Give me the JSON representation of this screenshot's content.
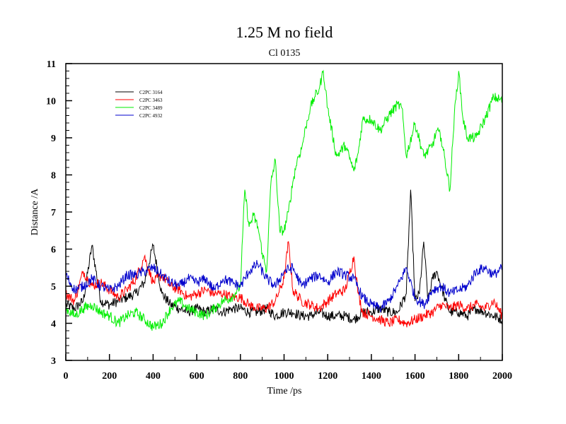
{
  "chart_data": {
    "type": "line",
    "title": "1.25 M no field",
    "subtitle": "Cl 0135",
    "xlabel": "Time /ps",
    "ylabel": "Distance /A",
    "xlim": [
      0,
      2000
    ],
    "ylim": [
      3,
      11
    ],
    "xticks": [
      0,
      200,
      400,
      600,
      800,
      1000,
      1200,
      1400,
      1600,
      1800,
      2000
    ],
    "yticks": [
      3,
      4,
      5,
      6,
      7,
      8,
      9,
      10,
      11
    ],
    "legend_position": "top-left",
    "series": [
      {
        "name": "C2PC 3164",
        "color": "#000000",
        "x": [
          0,
          40,
          80,
          120,
          160,
          200,
          240,
          280,
          320,
          360,
          400,
          440,
          480,
          520,
          560,
          600,
          640,
          680,
          720,
          760,
          800,
          840,
          880,
          920,
          960,
          1000,
          1040,
          1080,
          1120,
          1160,
          1200,
          1240,
          1280,
          1320,
          1360,
          1400,
          1440,
          1480,
          1520,
          1560,
          1580,
          1600,
          1620,
          1640,
          1660,
          1680,
          1700,
          1720,
          1740,
          1760,
          1800,
          1840,
          1880,
          1920,
          1960,
          2000
        ],
        "y": [
          4.5,
          4.4,
          4.6,
          6.1,
          4.6,
          4.5,
          4.6,
          4.7,
          4.8,
          5.1,
          6.1,
          4.8,
          4.5,
          4.4,
          4.3,
          4.4,
          4.3,
          4.4,
          4.3,
          4.4,
          4.4,
          4.3,
          4.3,
          4.4,
          4.2,
          4.3,
          4.3,
          4.2,
          4.2,
          4.3,
          4.2,
          4.2,
          4.2,
          4.1,
          4.3,
          4.3,
          4.4,
          4.3,
          4.3,
          4.8,
          7.6,
          4.6,
          4.8,
          6.2,
          4.6,
          5.2,
          5.4,
          5.0,
          4.6,
          4.3,
          4.3,
          4.2,
          4.4,
          4.3,
          4.2,
          4.1
        ]
      },
      {
        "name": "C2PC 3463",
        "color": "#ff0000",
        "x": [
          0,
          40,
          80,
          120,
          160,
          200,
          240,
          280,
          320,
          360,
          400,
          440,
          480,
          520,
          560,
          600,
          640,
          680,
          720,
          760,
          800,
          840,
          880,
          920,
          960,
          1000,
          1020,
          1040,
          1080,
          1120,
          1160,
          1200,
          1240,
          1280,
          1320,
          1340,
          1360,
          1400,
          1440,
          1480,
          1520,
          1560,
          1600,
          1640,
          1680,
          1720,
          1760,
          1800,
          1840,
          1880,
          1920,
          1960,
          2000
        ],
        "y": [
          4.8,
          4.6,
          5.4,
          5.0,
          5.1,
          4.9,
          4.7,
          4.9,
          5.2,
          5.8,
          5.1,
          5.3,
          5.0,
          4.9,
          4.7,
          4.8,
          4.9,
          4.8,
          4.8,
          4.7,
          4.7,
          4.5,
          4.4,
          4.4,
          4.6,
          5.2,
          6.2,
          4.9,
          4.6,
          4.5,
          4.4,
          4.6,
          4.8,
          4.9,
          5.8,
          4.8,
          4.3,
          4.2,
          4.1,
          4.0,
          4.1,
          4.0,
          4.1,
          4.2,
          4.3,
          4.5,
          4.4,
          4.5,
          4.4,
          4.5,
          4.4,
          4.6,
          4.2
        ]
      },
      {
        "name": "C2PC 3489",
        "color": "#00ee00",
        "x": [
          0,
          40,
          80,
          120,
          160,
          200,
          240,
          280,
          320,
          360,
          400,
          440,
          480,
          520,
          560,
          600,
          640,
          680,
          720,
          760,
          800,
          820,
          840,
          860,
          880,
          900,
          920,
          940,
          960,
          980,
          1000,
          1020,
          1040,
          1060,
          1080,
          1100,
          1120,
          1140,
          1160,
          1180,
          1200,
          1240,
          1280,
          1320,
          1340,
          1360,
          1400,
          1440,
          1480,
          1520,
          1540,
          1560,
          1600,
          1640,
          1680,
          1700,
          1720,
          1760,
          1780,
          1800,
          1820,
          1840,
          1880,
          1920,
          1960,
          2000
        ],
        "y": [
          4.4,
          4.2,
          4.4,
          4.5,
          4.3,
          4.2,
          4.0,
          4.2,
          4.3,
          4.1,
          3.9,
          4.0,
          4.4,
          4.6,
          4.4,
          4.3,
          4.2,
          4.4,
          4.6,
          4.7,
          5.0,
          7.6,
          6.6,
          6.9,
          6.6,
          5.9,
          5.4,
          7.8,
          8.4,
          6.5,
          6.5,
          7.0,
          7.8,
          8.4,
          8.7,
          9.3,
          9.8,
          10.1,
          10.3,
          10.8,
          9.8,
          8.5,
          8.8,
          8.1,
          8.6,
          9.5,
          9.5,
          9.2,
          9.6,
          9.9,
          9.8,
          8.5,
          9.4,
          8.5,
          8.8,
          9.2,
          9.0,
          7.6,
          9.6,
          10.8,
          9.5,
          9.0,
          9.0,
          9.5,
          10.1,
          10.0
        ]
      },
      {
        "name": "C2PC 4932",
        "color": "#0000cc",
        "x": [
          0,
          40,
          80,
          120,
          160,
          200,
          240,
          280,
          320,
          360,
          400,
          440,
          480,
          520,
          560,
          600,
          640,
          680,
          720,
          760,
          800,
          840,
          880,
          920,
          960,
          1000,
          1040,
          1080,
          1120,
          1160,
          1200,
          1240,
          1280,
          1320,
          1360,
          1400,
          1440,
          1480,
          1520,
          1560,
          1600,
          1640,
          1680,
          1720,
          1760,
          1800,
          1840,
          1880,
          1920,
          1960,
          2000
        ],
        "y": [
          5.3,
          4.9,
          5.0,
          5.2,
          5.0,
          4.9,
          5.0,
          5.3,
          5.3,
          5.4,
          5.5,
          5.3,
          5.1,
          5.0,
          5.2,
          5.1,
          5.2,
          4.9,
          5.2,
          5.1,
          5.0,
          5.4,
          5.6,
          5.2,
          5.0,
          5.4,
          5.5,
          5.0,
          5.2,
          5.3,
          5.1,
          5.4,
          5.3,
          5.2,
          4.7,
          4.5,
          4.4,
          4.6,
          5.0,
          5.5,
          4.7,
          4.5,
          4.9,
          5.0,
          4.8,
          4.9,
          5.0,
          5.4,
          5.5,
          5.3,
          5.5
        ]
      }
    ]
  }
}
